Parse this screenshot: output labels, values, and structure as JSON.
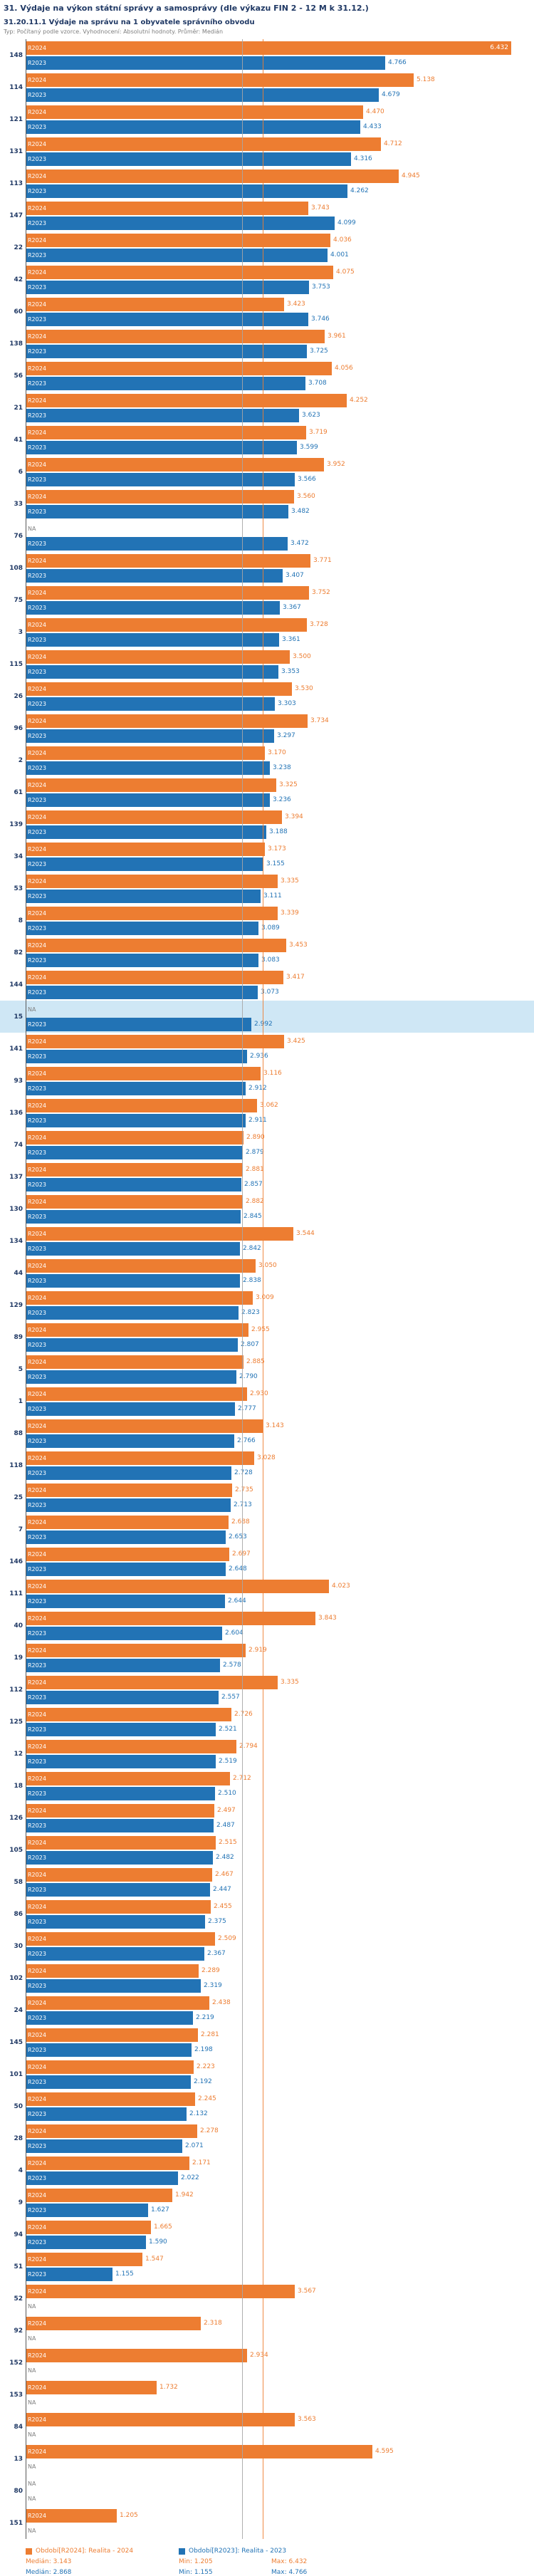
{
  "header": {
    "title": "31. Výdaje na výkon státní správy a samosprávy (dle výkazu FIN 2 - 12 M k 31.12.)",
    "subtitle": "31.20.11.1 Výdaje na správu na 1 obyvatele správního obvodu",
    "meta": "Typ: Počítaný podle vzorce. Vyhodnocení: Absolutní hodnoty. Průměr: Medián"
  },
  "chart_data": {
    "type": "bar",
    "orientation": "horizontal",
    "title": "31.20.11.1 Výdaje na správu na 1 obyvatele správního obvodu",
    "xlabel": "",
    "ylabel": "",
    "xlim": [
      0,
      6.7
    ],
    "grid": false,
    "na_label": "NA",
    "highlighted_category": "15",
    "legend_position": "bottom",
    "series": [
      {
        "key": "r2024",
        "bar_label": "R2024",
        "name": "Období[R2024]: Realita - 2024",
        "color": "#ed7d31",
        "median": 3.143,
        "min": 1.205,
        "max": 6.432
      },
      {
        "key": "r2023",
        "bar_label": "R2023",
        "name": "Období[R2023]: Realita - 2023",
        "color": "#2273b5",
        "median": 2.868,
        "min": 1.155,
        "max": 4.766
      }
    ],
    "rows": [
      {
        "category": "148",
        "r2024": 6.432,
        "r2023": 4.766
      },
      {
        "category": "114",
        "r2024": 5.138,
        "r2023": 4.679
      },
      {
        "category": "121",
        "r2024": 4.47,
        "r2023": 4.433
      },
      {
        "category": "131",
        "r2024": 4.712,
        "r2023": 4.316
      },
      {
        "category": "113",
        "r2024": 4.945,
        "r2023": 4.262
      },
      {
        "category": "147",
        "r2024": 3.743,
        "r2023": 4.099
      },
      {
        "category": "22",
        "r2024": 4.036,
        "r2023": 4.001
      },
      {
        "category": "42",
        "r2024": 4.075,
        "r2023": 3.753
      },
      {
        "category": "60",
        "r2024": 3.423,
        "r2023": 3.746
      },
      {
        "category": "138",
        "r2024": 3.961,
        "r2023": 3.725
      },
      {
        "category": "56",
        "r2024": 4.056,
        "r2023": 3.708
      },
      {
        "category": "21",
        "r2024": 4.252,
        "r2023": 3.623
      },
      {
        "category": "41",
        "r2024": 3.719,
        "r2023": 3.599
      },
      {
        "category": "6",
        "r2024": 3.952,
        "r2023": 3.566
      },
      {
        "category": "33",
        "r2024": 3.56,
        "r2023": 3.482
      },
      {
        "category": "76",
        "r2024": null,
        "r2023": 3.472
      },
      {
        "category": "108",
        "r2024": 3.771,
        "r2023": 3.407
      },
      {
        "category": "75",
        "r2024": 3.752,
        "r2023": 3.367
      },
      {
        "category": "3",
        "r2024": 3.728,
        "r2023": 3.361
      },
      {
        "category": "115",
        "r2024": 3.5,
        "r2023": 3.353
      },
      {
        "category": "26",
        "r2024": 3.53,
        "r2023": 3.303
      },
      {
        "category": "96",
        "r2024": 3.734,
        "r2023": 3.297
      },
      {
        "category": "2",
        "r2024": 3.17,
        "r2023": 3.238
      },
      {
        "category": "61",
        "r2024": 3.325,
        "r2023": 3.236
      },
      {
        "category": "139",
        "r2024": 3.394,
        "r2023": 3.188
      },
      {
        "category": "34",
        "r2024": 3.173,
        "r2023": 3.155
      },
      {
        "category": "53",
        "r2024": 3.335,
        "r2023": 3.111
      },
      {
        "category": "8",
        "r2024": 3.339,
        "r2023": 3.089
      },
      {
        "category": "82",
        "r2024": 3.453,
        "r2023": 3.083
      },
      {
        "category": "144",
        "r2024": 3.417,
        "r2023": 3.073
      },
      {
        "category": "15",
        "r2024": null,
        "r2023": 2.992
      },
      {
        "category": "141",
        "r2024": 3.425,
        "r2023": 2.936
      },
      {
        "category": "93",
        "r2024": 3.116,
        "r2023": 2.912
      },
      {
        "category": "136",
        "r2024": 3.062,
        "r2023": 2.911
      },
      {
        "category": "74",
        "r2024": 2.89,
        "r2023": 2.879
      },
      {
        "category": "137",
        "r2024": 2.881,
        "r2023": 2.857
      },
      {
        "category": "130",
        "r2024": 2.882,
        "r2023": 2.845
      },
      {
        "category": "134",
        "r2024": 3.544,
        "r2023": 2.842
      },
      {
        "category": "44",
        "r2024": 3.05,
        "r2023": 2.838
      },
      {
        "category": "129",
        "r2024": 3.009,
        "r2023": 2.823
      },
      {
        "category": "89",
        "r2024": 2.955,
        "r2023": 2.807
      },
      {
        "category": "5",
        "r2024": 2.885,
        "r2023": 2.79
      },
      {
        "category": "1",
        "r2024": 2.93,
        "r2023": 2.777
      },
      {
        "category": "88",
        "r2024": 3.143,
        "r2023": 2.766
      },
      {
        "category": "118",
        "r2024": 3.028,
        "r2023": 2.728
      },
      {
        "category": "25",
        "r2024": 2.735,
        "r2023": 2.713
      },
      {
        "category": "7",
        "r2024": 2.688,
        "r2023": 2.653
      },
      {
        "category": "146",
        "r2024": 2.697,
        "r2023": 2.648
      },
      {
        "category": "111",
        "r2024": 4.023,
        "r2023": 2.644
      },
      {
        "category": "40",
        "r2024": 3.843,
        "r2023": 2.604
      },
      {
        "category": "19",
        "r2024": 2.919,
        "r2023": 2.578
      },
      {
        "category": "112",
        "r2024": 3.335,
        "r2023": 2.557
      },
      {
        "category": "125",
        "r2024": 2.726,
        "r2023": 2.521
      },
      {
        "category": "12",
        "r2024": 2.794,
        "r2023": 2.519
      },
      {
        "category": "18",
        "r2024": 2.712,
        "r2023": 2.51
      },
      {
        "category": "126",
        "r2024": 2.497,
        "r2023": 2.487
      },
      {
        "category": "105",
        "r2024": 2.515,
        "r2023": 2.482
      },
      {
        "category": "58",
        "r2024": 2.467,
        "r2023": 2.447
      },
      {
        "category": "86",
        "r2024": 2.455,
        "r2023": 2.375
      },
      {
        "category": "30",
        "r2024": 2.509,
        "r2023": 2.367
      },
      {
        "category": "102",
        "r2024": 2.289,
        "r2023": 2.319
      },
      {
        "category": "24",
        "r2024": 2.438,
        "r2023": 2.219
      },
      {
        "category": "145",
        "r2024": 2.281,
        "r2023": 2.198
      },
      {
        "category": "101",
        "r2024": 2.223,
        "r2023": 2.192
      },
      {
        "category": "50",
        "r2024": 2.245,
        "r2023": 2.132
      },
      {
        "category": "28",
        "r2024": 2.278,
        "r2023": 2.071
      },
      {
        "category": "4",
        "r2024": 2.171,
        "r2023": 2.022
      },
      {
        "category": "9",
        "r2024": 1.942,
        "r2023": 1.627
      },
      {
        "category": "94",
        "r2024": 1.665,
        "r2023": 1.59
      },
      {
        "category": "51",
        "r2024": 1.547,
        "r2023": 1.155
      },
      {
        "category": "52",
        "r2024": 3.567,
        "r2023": null
      },
      {
        "category": "92",
        "r2024": 2.318,
        "r2023": null
      },
      {
        "category": "152",
        "r2024": 2.934,
        "r2023": null
      },
      {
        "category": "153",
        "r2024": 1.732,
        "r2023": null
      },
      {
        "category": "84",
        "r2024": 3.563,
        "r2023": null
      },
      {
        "category": "13",
        "r2024": 4.595,
        "r2023": null
      },
      {
        "category": "80",
        "r2024": null,
        "r2023": null
      },
      {
        "category": "151",
        "r2024": 1.205,
        "r2023": null
      }
    ]
  },
  "footer": {
    "stats_2024": {
      "median": "Medián: 3.143",
      "min": "Min: 1.205",
      "max": "Max: 6.432"
    },
    "stats_2023": {
      "median": "Medián: 2.868",
      "min": "Min: 1.155",
      "max": "Max: 4.766"
    }
  }
}
